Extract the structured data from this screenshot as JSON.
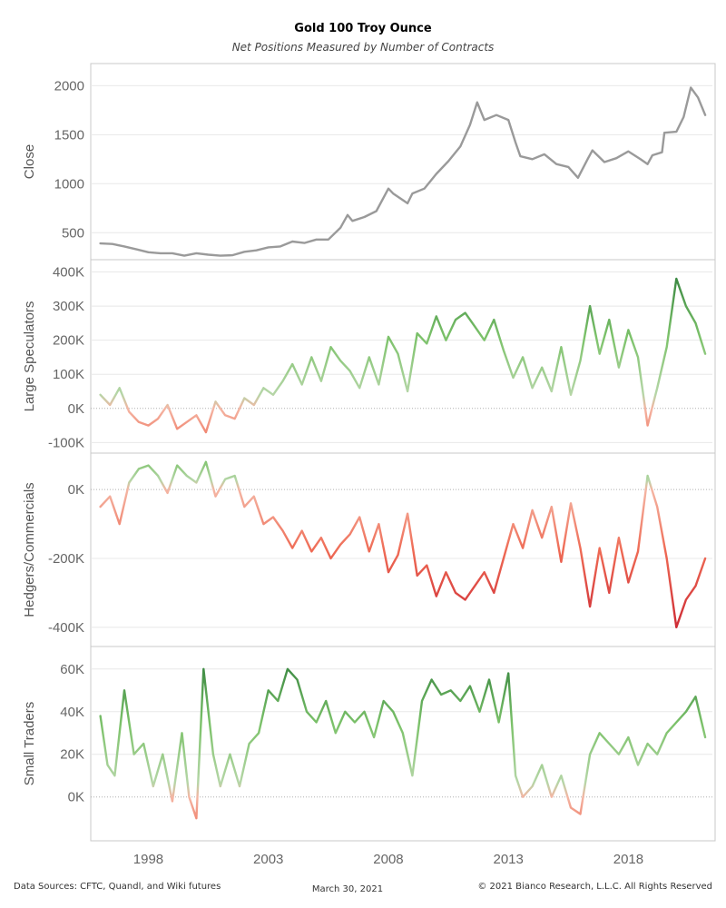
{
  "header": {
    "title": "Gold 100 Troy Ounce",
    "subtitle": "Net Positions Measured by Number of Contracts"
  },
  "footer": {
    "sources": "Data Sources: CFTC, Quandl, and Wiki futures",
    "date": "March 30, 2021",
    "copyright": "© 2021 Bianco Research, L.L.C. All Rights Reserved"
  },
  "colors": {
    "close_line": "#9a9a9a",
    "green_light": "#b5d6a7",
    "green_mid": "#7cc26a",
    "green_dark": "#2e7d3a",
    "red_light": "#f4b6a4",
    "red_mid": "#ef6b55",
    "red_dark": "#c8202f",
    "grid": "#e8e8e8",
    "zero_line": "#b0b0b0",
    "panel_border": "#c8c8c8"
  },
  "chart_data": [
    {
      "type": "line",
      "ylabel": "Close",
      "y_ticks": [
        "500",
        "1000",
        "1500",
        "2000"
      ],
      "y_tick_values": [
        500,
        1000,
        1500,
        2000
      ],
      "ylim": [
        280,
        2170
      ],
      "series": [
        {
          "x": [
            1996.0,
            1996.5,
            1997.0,
            1997.5,
            1998.0,
            1998.5,
            1999.0,
            1999.5,
            2000.0,
            2000.5,
            2001.0,
            2001.5,
            2002.0,
            2002.5,
            2003.0,
            2003.5,
            2004.0,
            2004.5,
            2005.0,
            2005.5,
            2006.0,
            2006.3,
            2006.5,
            2007.0,
            2007.5,
            2008.0,
            2008.2,
            2008.8,
            2009.0,
            2009.5,
            2010.0,
            2010.5,
            2011.0,
            2011.4,
            2011.7,
            2012.0,
            2012.5,
            2013.0,
            2013.3,
            2013.5,
            2014.0,
            2014.5,
            2015.0,
            2015.5,
            2015.9,
            2016.3,
            2016.5,
            2017.0,
            2017.5,
            2018.0,
            2018.5,
            2018.8,
            2019.0,
            2019.4,
            2019.5,
            2020.0,
            2020.3,
            2020.6,
            2020.9,
            2021.2
          ],
          "y": [
            390,
            385,
            360,
            330,
            300,
            290,
            290,
            265,
            290,
            275,
            265,
            270,
            305,
            320,
            350,
            360,
            410,
            395,
            430,
            430,
            550,
            680,
            620,
            660,
            720,
            950,
            900,
            800,
            900,
            950,
            1100,
            1230,
            1380,
            1600,
            1830,
            1650,
            1700,
            1650,
            1420,
            1280,
            1250,
            1300,
            1200,
            1170,
            1060,
            1250,
            1340,
            1220,
            1260,
            1330,
            1250,
            1200,
            1290,
            1320,
            1520,
            1530,
            1680,
            1980,
            1880,
            1700
          ]
        }
      ]
    },
    {
      "type": "line",
      "ylabel": "Large Speculators",
      "y_ticks": [
        "-100K",
        "0K",
        "100K",
        "200K",
        "300K",
        "400K"
      ],
      "y_tick_values": [
        -100000,
        0,
        100000,
        200000,
        300000,
        400000
      ],
      "ylim": [
        -115000,
        420000
      ],
      "series": [
        {
          "x": [
            1996.0,
            1996.4,
            1996.8,
            1997.2,
            1997.6,
            1998.0,
            1998.4,
            1998.8,
            1999.2,
            1999.6,
            2000.0,
            2000.4,
            2000.8,
            2001.2,
            2001.6,
            2002.0,
            2002.4,
            2002.8,
            2003.2,
            2003.6,
            2004.0,
            2004.4,
            2004.8,
            2005.2,
            2005.6,
            2006.0,
            2006.4,
            2006.8,
            2007.2,
            2007.6,
            2008.0,
            2008.4,
            2008.8,
            2009.2,
            2009.6,
            2010.0,
            2010.4,
            2010.8,
            2011.2,
            2011.6,
            2012.0,
            2012.4,
            2012.8,
            2013.2,
            2013.6,
            2014.0,
            2014.4,
            2014.8,
            2015.2,
            2015.6,
            2016.0,
            2016.4,
            2016.8,
            2017.2,
            2017.6,
            2018.0,
            2018.4,
            2018.8,
            2019.2,
            2019.6,
            2020.0,
            2020.4,
            2020.8,
            2021.2
          ],
          "y": [
            40000,
            10000,
            60000,
            -10000,
            -40000,
            -50000,
            -30000,
            10000,
            -60000,
            -40000,
            -20000,
            -70000,
            20000,
            -20000,
            -30000,
            30000,
            10000,
            60000,
            40000,
            80000,
            130000,
            70000,
            150000,
            80000,
            180000,
            140000,
            110000,
            60000,
            150000,
            70000,
            210000,
            160000,
            50000,
            220000,
            190000,
            270000,
            200000,
            260000,
            280000,
            240000,
            200000,
            260000,
            170000,
            90000,
            150000,
            60000,
            120000,
            50000,
            180000,
            40000,
            140000,
            300000,
            160000,
            260000,
            120000,
            230000,
            150000,
            -50000,
            60000,
            180000,
            380000,
            300000,
            250000,
            160000
          ]
        }
      ]
    },
    {
      "type": "line",
      "ylabel": "Hedgers/Commercials",
      "y_ticks": [
        "-400K",
        "-200K",
        "0K"
      ],
      "y_tick_values": [
        -400000,
        -200000,
        0
      ],
      "ylim": [
        -440000,
        90000
      ],
      "series": [
        {
          "x": [
            1996.0,
            1996.4,
            1996.8,
            1997.2,
            1997.6,
            1998.0,
            1998.4,
            1998.8,
            1999.2,
            1999.6,
            2000.0,
            2000.4,
            2000.8,
            2001.2,
            2001.6,
            2002.0,
            2002.4,
            2002.8,
            2003.2,
            2003.6,
            2004.0,
            2004.4,
            2004.8,
            2005.2,
            2005.6,
            2006.0,
            2006.4,
            2006.8,
            2007.2,
            2007.6,
            2008.0,
            2008.4,
            2008.8,
            2009.2,
            2009.6,
            2010.0,
            2010.4,
            2010.8,
            2011.2,
            2011.6,
            2012.0,
            2012.4,
            2012.8,
            2013.2,
            2013.6,
            2014.0,
            2014.4,
            2014.8,
            2015.2,
            2015.6,
            2016.0,
            2016.4,
            2016.8,
            2017.2,
            2017.6,
            2018.0,
            2018.4,
            2018.8,
            2019.2,
            2019.6,
            2020.0,
            2020.4,
            2020.8,
            2021.2
          ],
          "y": [
            -50000,
            -20000,
            -100000,
            20000,
            60000,
            70000,
            40000,
            -10000,
            70000,
            40000,
            20000,
            80000,
            -20000,
            30000,
            40000,
            -50000,
            -20000,
            -100000,
            -80000,
            -120000,
            -170000,
            -120000,
            -180000,
            -140000,
            -200000,
            -160000,
            -130000,
            -80000,
            -180000,
            -100000,
            -240000,
            -190000,
            -70000,
            -250000,
            -220000,
            -310000,
            -240000,
            -300000,
            -320000,
            -280000,
            -240000,
            -300000,
            -200000,
            -100000,
            -170000,
            -60000,
            -140000,
            -50000,
            -210000,
            -40000,
            -170000,
            -340000,
            -170000,
            -300000,
            -140000,
            -270000,
            -180000,
            40000,
            -50000,
            -200000,
            -400000,
            -320000,
            -280000,
            -200000
          ]
        }
      ]
    },
    {
      "type": "line",
      "ylabel": "Small Traders",
      "y_ticks": [
        "0K",
        "20K",
        "40K",
        "60K"
      ],
      "y_tick_values": [
        0,
        20000,
        40000,
        60000
      ],
      "ylim": [
        -18000,
        68000
      ],
      "series": [
        {
          "x": [
            1996.0,
            1996.3,
            1996.6,
            1997.0,
            1997.4,
            1997.8,
            1998.2,
            1998.6,
            1999.0,
            1999.4,
            1999.7,
            2000.0,
            2000.3,
            2000.7,
            2001.0,
            2001.4,
            2001.8,
            2002.2,
            2002.6,
            2003.0,
            2003.4,
            2003.8,
            2004.2,
            2004.6,
            2005.0,
            2005.4,
            2005.8,
            2006.2,
            2006.6,
            2007.0,
            2007.4,
            2007.8,
            2008.2,
            2008.6,
            2009.0,
            2009.4,
            2009.8,
            2010.2,
            2010.6,
            2011.0,
            2011.4,
            2011.8,
            2012.2,
            2012.6,
            2013.0,
            2013.3,
            2013.6,
            2014.0,
            2014.4,
            2014.8,
            2015.2,
            2015.6,
            2016.0,
            2016.4,
            2016.8,
            2017.2,
            2017.6,
            2018.0,
            2018.4,
            2018.8,
            2019.2,
            2019.6,
            2020.0,
            2020.4,
            2020.8,
            2021.2
          ],
          "y": [
            38000,
            15000,
            10000,
            50000,
            20000,
            25000,
            5000,
            20000,
            -2000,
            30000,
            0,
            -10000,
            60000,
            20000,
            5000,
            20000,
            5000,
            25000,
            30000,
            50000,
            45000,
            60000,
            55000,
            40000,
            35000,
            45000,
            30000,
            40000,
            35000,
            40000,
            28000,
            45000,
            40000,
            30000,
            10000,
            45000,
            55000,
            48000,
            50000,
            45000,
            52000,
            40000,
            55000,
            35000,
            58000,
            10000,
            0,
            5000,
            15000,
            0,
            10000,
            -5000,
            -8000,
            20000,
            30000,
            25000,
            20000,
            28000,
            15000,
            25000,
            20000,
            30000,
            35000,
            40000,
            47000,
            28000
          ]
        }
      ]
    }
  ],
  "x_axis": {
    "ticks": [
      "1998",
      "2003",
      "2008",
      "2013",
      "2018"
    ],
    "tick_values": [
      1998,
      2003,
      2008,
      2013,
      2018
    ],
    "xlim": [
      1995.6,
      2021.5
    ]
  }
}
